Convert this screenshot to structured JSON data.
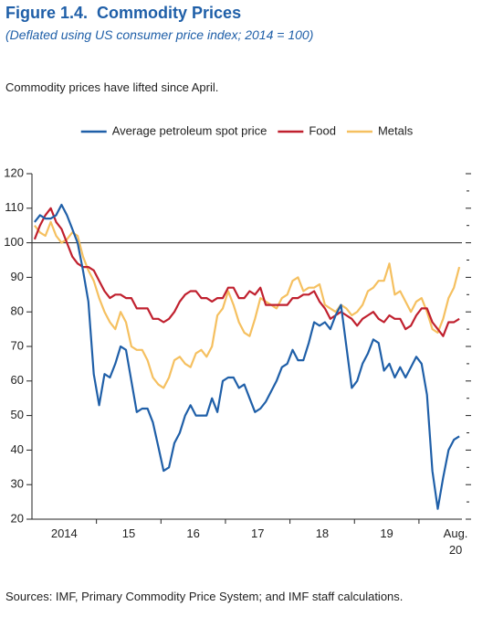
{
  "chart_data": {
    "type": "line",
    "title": "Figure 1.4.  Commodity Prices",
    "subtitle": "(Deflated using US consumer price index; 2014 = 100)",
    "annotation": "Commodity prices have lifted since April.",
    "source": "Sources: IMF, Primary Commodity Price System; and IMF staff calculations.",
    "categories": [
      null,
      null,
      null,
      null,
      null,
      null,
      "2014",
      null,
      null,
      null,
      null,
      null,
      null,
      null,
      null,
      null,
      null,
      null,
      "15",
      null,
      null,
      null,
      null,
      null,
      null,
      null,
      null,
      null,
      null,
      null,
      "16",
      null,
      null,
      null,
      null,
      null,
      null,
      null,
      null,
      null,
      null,
      null,
      "17",
      null,
      null,
      null,
      null,
      null,
      null,
      null,
      null,
      null,
      null,
      null,
      "18",
      null,
      null,
      null,
      null,
      null,
      null,
      null,
      null,
      null,
      null,
      null,
      "19",
      null,
      null,
      null,
      null,
      null,
      null,
      null,
      null,
      null,
      null,
      null,
      null,
      "Aug. 20"
    ],
    "ylim": [
      20,
      120
    ],
    "yticks": [
      20,
      30,
      40,
      50,
      60,
      70,
      80,
      90,
      100,
      110,
      120
    ],
    "yticks_minor": [
      25,
      35,
      45,
      55,
      65,
      75,
      85,
      95,
      105,
      115
    ],
    "reference_line": 100,
    "legend": "top",
    "series": [
      {
        "name": "Average petroleum spot price",
        "color": "#1f5fa8",
        "values": [
          106,
          108,
          107,
          107,
          108,
          111,
          108,
          104,
          100,
          92,
          83,
          62,
          53,
          62,
          61,
          65,
          70,
          69,
          60,
          51,
          52,
          52,
          48,
          41,
          34,
          35,
          42,
          45,
          50,
          53,
          50,
          50,
          50,
          55,
          51,
          60,
          61,
          61,
          58,
          59,
          55,
          51,
          52,
          54,
          57,
          60,
          64,
          65,
          69,
          66,
          66,
          71,
          77,
          76,
          77,
          75,
          79,
          82,
          70,
          58,
          60,
          65,
          68,
          72,
          71,
          63,
          65,
          61,
          64,
          61,
          64,
          67,
          65,
          56,
          34,
          23,
          32,
          40,
          43,
          44
        ]
      },
      {
        "name": "Food",
        "color": "#c0202e",
        "values": [
          101,
          105,
          108,
          110,
          106,
          104,
          100,
          96,
          94,
          93,
          93,
          92,
          89,
          86,
          84,
          85,
          85,
          84,
          84,
          81,
          81,
          81,
          78,
          78,
          77,
          78,
          80,
          83,
          85,
          86,
          86,
          84,
          84,
          83,
          84,
          84,
          87,
          87,
          84,
          84,
          86,
          85,
          87,
          82,
          82,
          82,
          82,
          82,
          84,
          84,
          85,
          85,
          86,
          83,
          81,
          78,
          79,
          80,
          79,
          78,
          76,
          78,
          79,
          80,
          78,
          77,
          79,
          78,
          78,
          75,
          76,
          79,
          81,
          81,
          77,
          75,
          73,
          77,
          77,
          78
        ]
      },
      {
        "name": "Metals",
        "color": "#f5c060",
        "values": [
          105,
          103,
          102,
          106,
          102,
          100,
          101,
          103,
          102,
          96,
          92,
          89,
          84,
          80,
          77,
          75,
          80,
          77,
          70,
          69,
          69,
          66,
          61,
          59,
          58,
          61,
          66,
          67,
          65,
          64,
          68,
          69,
          67,
          70,
          79,
          81,
          86,
          82,
          77,
          74,
          73,
          78,
          84,
          83,
          82,
          81,
          84,
          85,
          89,
          90,
          86,
          87,
          87,
          88,
          82,
          81,
          80,
          82,
          81,
          79,
          80,
          82,
          86,
          87,
          89,
          89,
          94,
          85,
          86,
          83,
          80,
          83,
          84,
          80,
          75,
          74,
          78,
          84,
          87,
          93
        ]
      }
    ]
  }
}
